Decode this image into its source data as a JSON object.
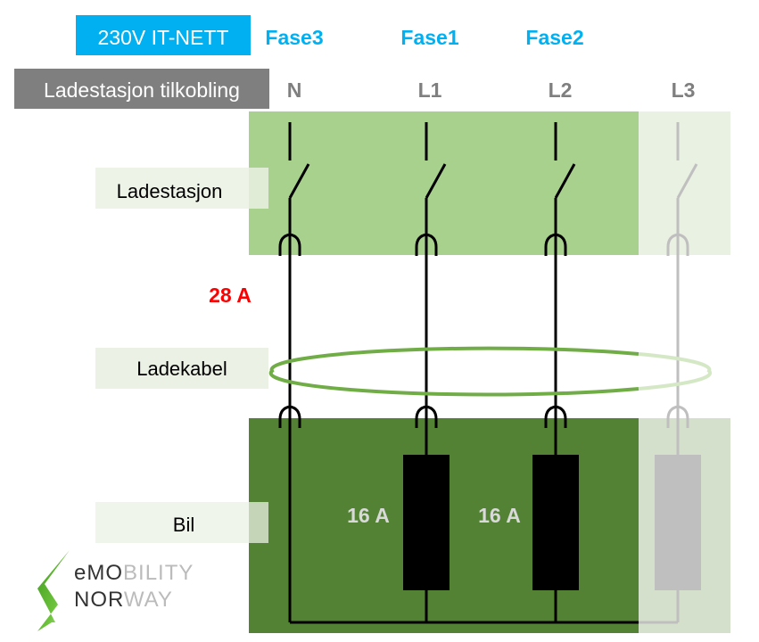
{
  "header": {
    "network_label": "230V IT-NETT",
    "phases": [
      "Fase3",
      "Fase1",
      "Fase2"
    ],
    "connection_label": "Ladestasjon tilkobling",
    "conductors": [
      "N",
      "L1",
      "L2",
      "L3"
    ]
  },
  "sections": {
    "station": "Ladestasjon",
    "cable": "Ladekabel",
    "car": "Bil"
  },
  "current_total": "28 A",
  "load_currents": [
    "16 A",
    "16 A"
  ],
  "logo": {
    "line1a": "eMO",
    "line1b": "BILITY",
    "line2a": "NOR",
    "line2b": "WAY"
  },
  "colors": {
    "accent_blue": "#00b0f0",
    "header_gray": "#7f7f7f",
    "station_green": "#a9d18e",
    "car_green": "#548235",
    "cable_green": "#70ad47",
    "alert_red": "#ff0000",
    "inactive_gray": "#bfbfbf"
  }
}
